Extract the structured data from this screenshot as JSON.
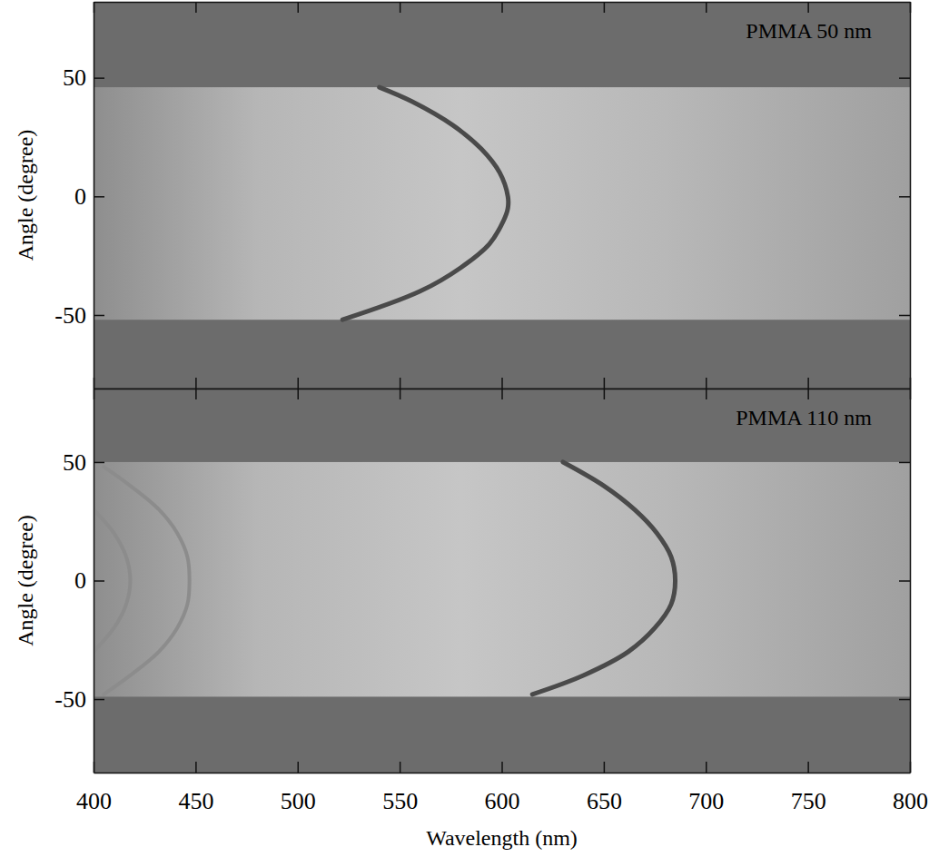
{
  "chart_data": [
    {
      "type": "line",
      "annotation": "PMMA 50 nm",
      "ylabel": "Angle (degree)",
      "xlim": [
        400,
        800
      ],
      "ylim": [
        -81,
        82
      ],
      "xticks": [
        400,
        450,
        500,
        550,
        600,
        650,
        700,
        750,
        800
      ],
      "yticks": [
        -50,
        0,
        50
      ],
      "tick_labels": "y",
      "band": [
        -52,
        46
      ],
      "series": [
        {
          "color": "#4a4a4a",
          "x": [
            540,
            556,
            576,
            590,
            599,
            603,
            603,
            601,
            594,
            580,
            560,
            522
          ],
          "values": [
            46,
            40,
            30,
            20,
            10,
            0,
            -5,
            -10,
            -20,
            -30,
            -40,
            -52
          ]
        }
      ]
    },
    {
      "type": "line",
      "annotation": "PMMA 110 nm",
      "xlabel": "Wavelength (nm)",
      "ylabel": "Angle (degree)",
      "xlim": [
        400,
        800
      ],
      "ylim": [
        -81,
        81
      ],
      "xticks": [
        400,
        450,
        500,
        550,
        600,
        650,
        700,
        750,
        800
      ],
      "yticks": [
        -50,
        0,
        50
      ],
      "band": [
        -49,
        50
      ],
      "series": [
        {
          "color": "#4a4a4a",
          "x": [
            630,
            650,
            665,
            676,
            683,
            685,
            683,
            675,
            662,
            640,
            615
          ],
          "values": [
            50,
            40,
            30,
            20,
            10,
            0,
            -10,
            -20,
            -30,
            -40,
            -48
          ]
        },
        {
          "color": "#8c8c8c",
          "x": [
            400,
            410,
            416,
            418,
            416,
            410,
            400
          ],
          "values": [
            30,
            20,
            10,
            0,
            -10,
            -20,
            -30
          ]
        },
        {
          "color": "#8c8c8c",
          "x": [
            405,
            418,
            432,
            441,
            446,
            447,
            446,
            441,
            432,
            418,
            405
          ],
          "values": [
            48,
            40,
            30,
            20,
            10,
            0,
            -10,
            -20,
            -30,
            -40,
            -48
          ]
        }
      ]
    }
  ]
}
